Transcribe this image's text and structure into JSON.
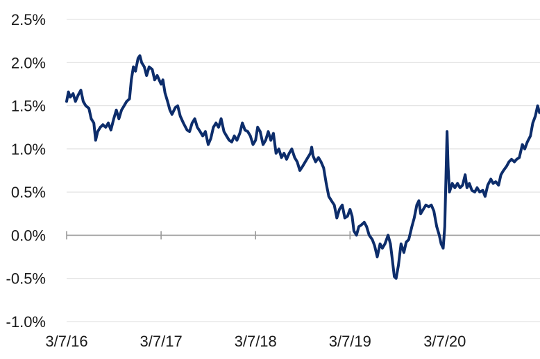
{
  "chart_data": {
    "type": "line",
    "title": "",
    "xlabel": "",
    "ylabel": "",
    "ylim": [
      -1.0,
      2.5
    ],
    "y_ticks": [
      {
        "value": 2.5,
        "label": "2.5%"
      },
      {
        "value": 2.0,
        "label": "2.0%"
      },
      {
        "value": 1.5,
        "label": "1.5%"
      },
      {
        "value": 1.0,
        "label": "1.0%"
      },
      {
        "value": 0.5,
        "label": "0.5%"
      },
      {
        "value": 0.0,
        "label": "0.0%"
      },
      {
        "value": -0.5,
        "label": "-0.5%"
      },
      {
        "value": -1.0,
        "label": "-1.0%"
      }
    ],
    "x_ticks": [
      {
        "date": "2016-03-07",
        "label": "3/7/16"
      },
      {
        "date": "2017-03-07",
        "label": "3/7/17"
      },
      {
        "date": "2018-03-07",
        "label": "3/7/18"
      },
      {
        "date": "2019-03-07",
        "label": "3/7/19"
      },
      {
        "date": "2020-03-07",
        "label": "3/7/20"
      }
    ],
    "xlim": [
      "2016-03-07",
      "2021-03-10"
    ],
    "grid": "horizontal",
    "line_color": "#0d2d6b",
    "series": [
      {
        "name": "",
        "points": [
          [
            "2016-03-07",
            1.55
          ],
          [
            "2016-03-14",
            1.66
          ],
          [
            "2016-03-21",
            1.6
          ],
          [
            "2016-04-01",
            1.64
          ],
          [
            "2016-04-10",
            1.55
          ],
          [
            "2016-04-20",
            1.62
          ],
          [
            "2016-05-01",
            1.68
          ],
          [
            "2016-05-10",
            1.55
          ],
          [
            "2016-05-20",
            1.5
          ],
          [
            "2016-06-01",
            1.47
          ],
          [
            "2016-06-10",
            1.35
          ],
          [
            "2016-06-20",
            1.3
          ],
          [
            "2016-06-27",
            1.1
          ],
          [
            "2016-07-05",
            1.2
          ],
          [
            "2016-07-15",
            1.25
          ],
          [
            "2016-07-25",
            1.28
          ],
          [
            "2016-08-05",
            1.25
          ],
          [
            "2016-08-15",
            1.3
          ],
          [
            "2016-08-25",
            1.22
          ],
          [
            "2016-09-05",
            1.35
          ],
          [
            "2016-09-15",
            1.45
          ],
          [
            "2016-09-25",
            1.35
          ],
          [
            "2016-10-05",
            1.45
          ],
          [
            "2016-10-15",
            1.5
          ],
          [
            "2016-10-25",
            1.55
          ],
          [
            "2016-11-05",
            1.58
          ],
          [
            "2016-11-12",
            1.8
          ],
          [
            "2016-11-20",
            1.95
          ],
          [
            "2016-11-28",
            1.9
          ],
          [
            "2016-12-08",
            2.05
          ],
          [
            "2016-12-15",
            2.08
          ],
          [
            "2016-12-22",
            2.0
          ],
          [
            "2017-01-01",
            1.95
          ],
          [
            "2017-01-10",
            1.85
          ],
          [
            "2017-01-20",
            1.95
          ],
          [
            "2017-02-01",
            1.92
          ],
          [
            "2017-02-10",
            1.8
          ],
          [
            "2017-02-20",
            1.85
          ],
          [
            "2017-03-07",
            1.75
          ],
          [
            "2017-03-14",
            1.8
          ],
          [
            "2017-03-22",
            1.65
          ],
          [
            "2017-04-01",
            1.55
          ],
          [
            "2017-04-10",
            1.45
          ],
          [
            "2017-04-18",
            1.4
          ],
          [
            "2017-05-01",
            1.48
          ],
          [
            "2017-05-10",
            1.5
          ],
          [
            "2017-05-20",
            1.38
          ],
          [
            "2017-06-01",
            1.3
          ],
          [
            "2017-06-15",
            1.22
          ],
          [
            "2017-06-25",
            1.2
          ],
          [
            "2017-07-05",
            1.3
          ],
          [
            "2017-07-15",
            1.35
          ],
          [
            "2017-07-25",
            1.25
          ],
          [
            "2017-08-05",
            1.2
          ],
          [
            "2017-08-15",
            1.15
          ],
          [
            "2017-08-25",
            1.2
          ],
          [
            "2017-09-05",
            1.05
          ],
          [
            "2017-09-15",
            1.12
          ],
          [
            "2017-09-25",
            1.25
          ],
          [
            "2017-10-05",
            1.3
          ],
          [
            "2017-10-15",
            1.25
          ],
          [
            "2017-10-25",
            1.35
          ],
          [
            "2017-11-05",
            1.2
          ],
          [
            "2017-11-15",
            1.15
          ],
          [
            "2017-11-25",
            1.1
          ],
          [
            "2017-12-05",
            1.08
          ],
          [
            "2017-12-15",
            1.15
          ],
          [
            "2017-12-25",
            1.1
          ],
          [
            "2018-01-05",
            1.18
          ],
          [
            "2018-01-15",
            1.3
          ],
          [
            "2018-01-25",
            1.22
          ],
          [
            "2018-02-05",
            1.2
          ],
          [
            "2018-02-15",
            1.15
          ],
          [
            "2018-02-25",
            1.05
          ],
          [
            "2018-03-07",
            1.1
          ],
          [
            "2018-03-15",
            1.25
          ],
          [
            "2018-03-25",
            1.2
          ],
          [
            "2018-04-05",
            1.05
          ],
          [
            "2018-04-15",
            1.1
          ],
          [
            "2018-04-25",
            1.2
          ],
          [
            "2018-05-05",
            1.1
          ],
          [
            "2018-05-15",
            1.18
          ],
          [
            "2018-05-25",
            0.95
          ],
          [
            "2018-06-05",
            1.0
          ],
          [
            "2018-06-15",
            0.9
          ],
          [
            "2018-06-25",
            0.95
          ],
          [
            "2018-07-05",
            0.88
          ],
          [
            "2018-07-15",
            0.95
          ],
          [
            "2018-07-25",
            1.0
          ],
          [
            "2018-08-05",
            0.9
          ],
          [
            "2018-08-15",
            0.85
          ],
          [
            "2018-08-25",
            0.75
          ],
          [
            "2018-09-05",
            0.8
          ],
          [
            "2018-09-15",
            0.85
          ],
          [
            "2018-09-25",
            0.9
          ],
          [
            "2018-10-05",
            0.95
          ],
          [
            "2018-10-10",
            1.02
          ],
          [
            "2018-10-15",
            0.92
          ],
          [
            "2018-10-25",
            0.85
          ],
          [
            "2018-11-05",
            0.9
          ],
          [
            "2018-11-15",
            0.85
          ],
          [
            "2018-11-25",
            0.78
          ],
          [
            "2018-12-05",
            0.6
          ],
          [
            "2018-12-15",
            0.45
          ],
          [
            "2018-12-25",
            0.4
          ],
          [
            "2019-01-05",
            0.35
          ],
          [
            "2019-01-15",
            0.2
          ],
          [
            "2019-01-25",
            0.3
          ],
          [
            "2019-02-05",
            0.35
          ],
          [
            "2019-02-15",
            0.2
          ],
          [
            "2019-02-25",
            0.22
          ],
          [
            "2019-03-07",
            0.3
          ],
          [
            "2019-03-15",
            0.22
          ],
          [
            "2019-03-22",
            0.05
          ],
          [
            "2019-04-01",
            0.0
          ],
          [
            "2019-04-10",
            0.1
          ],
          [
            "2019-04-20",
            0.12
          ],
          [
            "2019-05-01",
            0.15
          ],
          [
            "2019-05-10",
            0.1
          ],
          [
            "2019-05-20",
            0.0
          ],
          [
            "2019-06-01",
            -0.05
          ],
          [
            "2019-06-10",
            -0.12
          ],
          [
            "2019-06-20",
            -0.25
          ],
          [
            "2019-07-01",
            -0.1
          ],
          [
            "2019-07-10",
            -0.15
          ],
          [
            "2019-07-20",
            -0.1
          ],
          [
            "2019-08-01",
            0.0
          ],
          [
            "2019-08-10",
            -0.1
          ],
          [
            "2019-08-18",
            -0.3
          ],
          [
            "2019-08-25",
            -0.48
          ],
          [
            "2019-09-01",
            -0.5
          ],
          [
            "2019-09-10",
            -0.35
          ],
          [
            "2019-09-20",
            -0.1
          ],
          [
            "2019-10-01",
            -0.2
          ],
          [
            "2019-10-10",
            -0.08
          ],
          [
            "2019-10-20",
            -0.05
          ],
          [
            "2019-11-01",
            0.1
          ],
          [
            "2019-11-10",
            0.2
          ],
          [
            "2019-11-20",
            0.35
          ],
          [
            "2019-11-28",
            0.4
          ],
          [
            "2019-12-05",
            0.25
          ],
          [
            "2019-12-15",
            0.3
          ],
          [
            "2019-12-25",
            0.35
          ],
          [
            "2020-01-05",
            0.33
          ],
          [
            "2020-01-15",
            0.35
          ],
          [
            "2020-01-25",
            0.28
          ],
          [
            "2020-02-05",
            0.1
          ],
          [
            "2020-02-15",
            0.0
          ],
          [
            "2020-02-22",
            -0.1
          ],
          [
            "2020-03-01",
            -0.15
          ],
          [
            "2020-03-07",
            0.1
          ],
          [
            "2020-03-12",
            0.7
          ],
          [
            "2020-03-16",
            1.2
          ],
          [
            "2020-03-20",
            0.8
          ],
          [
            "2020-03-25",
            0.5
          ],
          [
            "2020-04-05",
            0.6
          ],
          [
            "2020-04-15",
            0.55
          ],
          [
            "2020-04-25",
            0.6
          ],
          [
            "2020-05-05",
            0.55
          ],
          [
            "2020-05-15",
            0.58
          ],
          [
            "2020-05-25",
            0.7
          ],
          [
            "2020-06-01",
            0.55
          ],
          [
            "2020-06-10",
            0.6
          ],
          [
            "2020-06-20",
            0.52
          ],
          [
            "2020-07-01",
            0.5
          ],
          [
            "2020-07-10",
            0.55
          ],
          [
            "2020-07-20",
            0.5
          ],
          [
            "2020-08-01",
            0.52
          ],
          [
            "2020-08-10",
            0.45
          ],
          [
            "2020-08-20",
            0.58
          ],
          [
            "2020-09-01",
            0.65
          ],
          [
            "2020-09-10",
            0.6
          ],
          [
            "2020-09-20",
            0.62
          ],
          [
            "2020-10-01",
            0.58
          ],
          [
            "2020-10-10",
            0.7
          ],
          [
            "2020-10-20",
            0.75
          ],
          [
            "2020-11-01",
            0.8
          ],
          [
            "2020-11-10",
            0.85
          ],
          [
            "2020-11-20",
            0.88
          ],
          [
            "2020-12-01",
            0.85
          ],
          [
            "2020-12-10",
            0.88
          ],
          [
            "2020-12-20",
            0.9
          ],
          [
            "2021-01-01",
            1.05
          ],
          [
            "2021-01-10",
            1.0
          ],
          [
            "2021-01-20",
            1.08
          ],
          [
            "2021-02-01",
            1.15
          ],
          [
            "2021-02-10",
            1.3
          ],
          [
            "2021-02-20",
            1.38
          ],
          [
            "2021-03-01",
            1.5
          ],
          [
            "2021-03-08",
            1.42
          ]
        ]
      }
    ]
  }
}
